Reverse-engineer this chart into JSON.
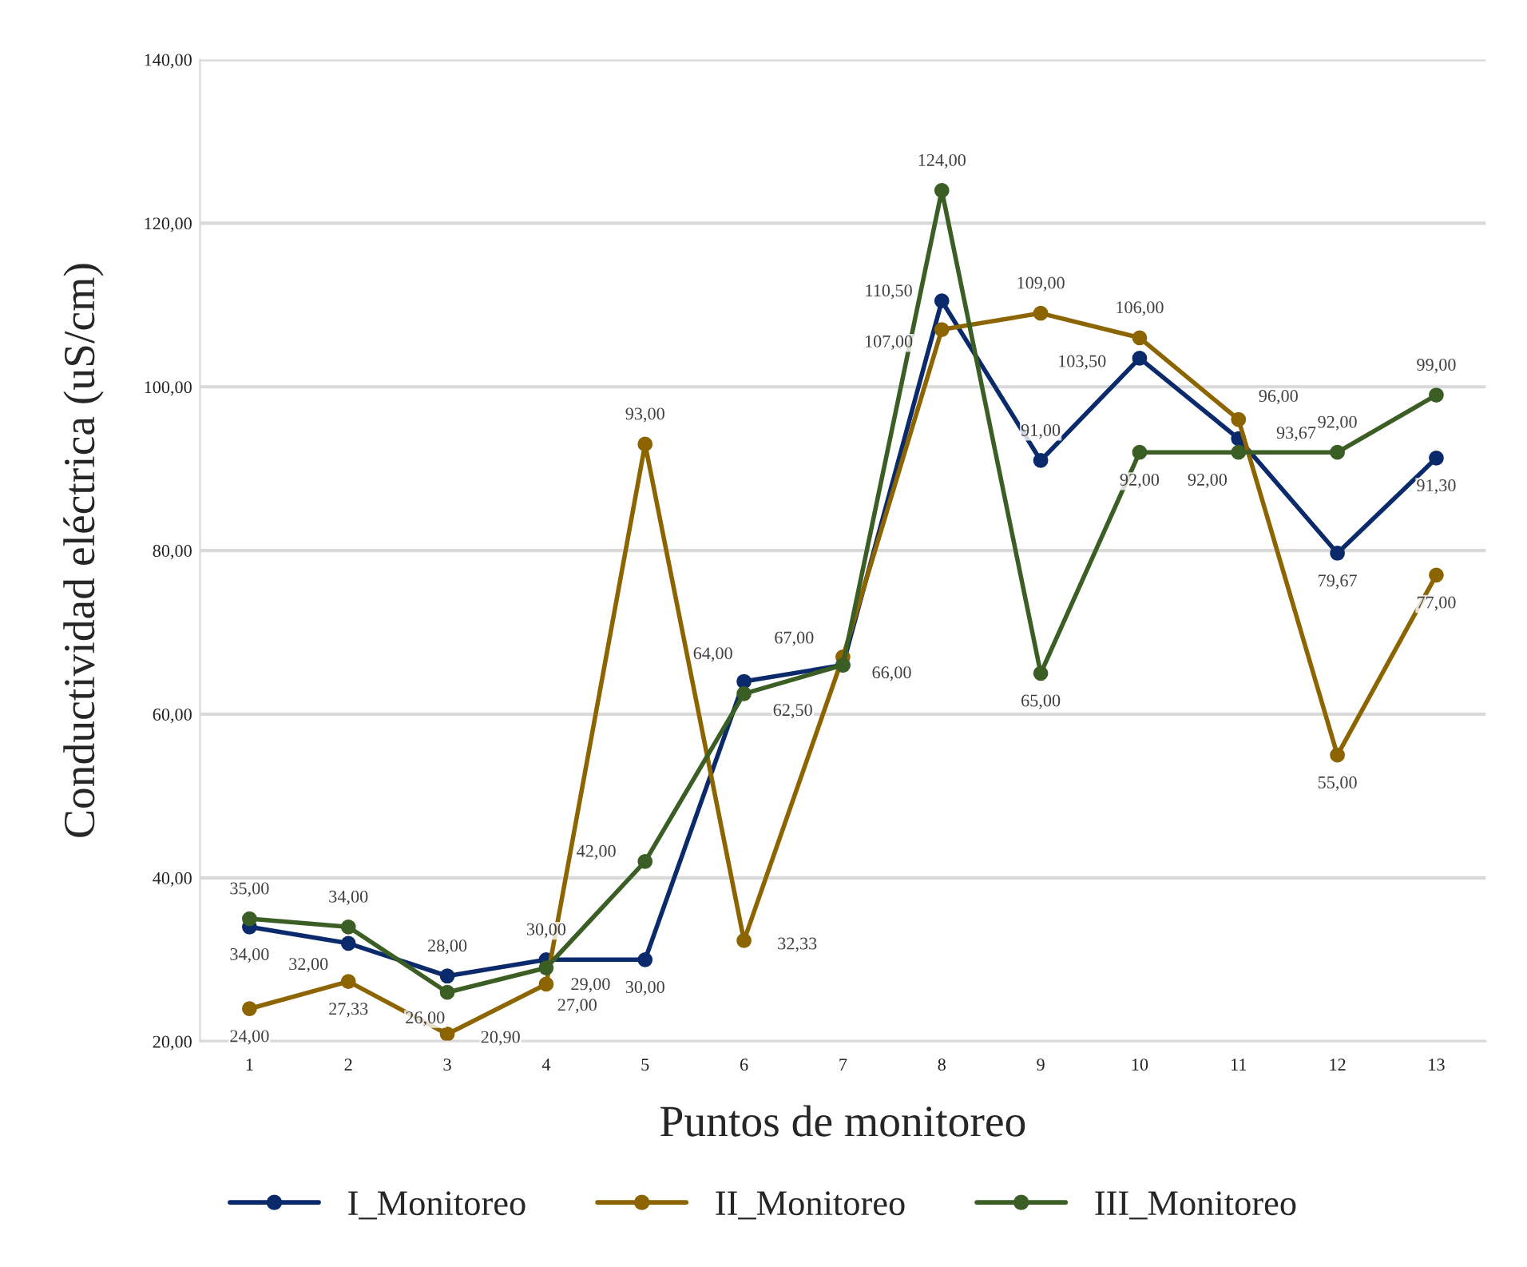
{
  "chart_data": {
    "type": "line",
    "xlabel": "Puntos de monitoreo",
    "ylabel": "Conductividad eléctrica (uS/cm)",
    "categories": [
      "1",
      "2",
      "3",
      "4",
      "5",
      "6",
      "7",
      "8",
      "9",
      "10",
      "11",
      "12",
      "13"
    ],
    "series": [
      {
        "name": "I_Monitoreo",
        "color": "#0b2a6b",
        "values": [
          34,
          32,
          28,
          30,
          30,
          64,
          66,
          110.5,
          91,
          103.5,
          93.67,
          79.67,
          91.3
        ],
        "value_labels": [
          "34,00",
          "32,00",
          "28,00",
          "30,00",
          "30,00",
          "64,00",
          "66,00",
          "110,50",
          "91,00",
          "103,50",
          "93,67",
          "79,67",
          "91,30"
        ]
      },
      {
        "name": "II_Monitoreo",
        "color": "#8c6400",
        "values": [
          24,
          27.33,
          20.9,
          27,
          93,
          32.33,
          67,
          107,
          109,
          106,
          96,
          55,
          77
        ],
        "value_labels": [
          "24,00",
          "27,33",
          "20,90",
          "27,00",
          "93,00",
          "32,33",
          "67,00",
          "107,00",
          "109,00",
          "106,00",
          "96,00",
          "55,00",
          "77,00"
        ]
      },
      {
        "name": "III_Monitoreo",
        "color": "#3b5e24",
        "values": [
          35,
          34,
          26,
          29,
          42,
          62.5,
          66,
          124,
          65,
          92,
          92,
          92,
          99
        ],
        "value_labels": [
          "35,00",
          "34,00",
          "26,00",
          "29,00",
          "42,00",
          "62,50",
          null,
          "124,00",
          "65,00",
          "92,00",
          "92,00",
          "92,00",
          "99,00"
        ]
      }
    ],
    "ylim": [
      20,
      140
    ],
    "yticks": [
      {
        "value": 20,
        "label": "20,00"
      },
      {
        "value": 40,
        "label": "40,00"
      },
      {
        "value": 60,
        "label": "60,00"
      },
      {
        "value": 80,
        "label": "80,00"
      },
      {
        "value": 100,
        "label": "100,00"
      },
      {
        "value": 120,
        "label": "120,00"
      },
      {
        "value": 140,
        "label": "140,00"
      }
    ],
    "grid": "y",
    "legend": "bottom",
    "marker": "circle",
    "line_style": "solid"
  }
}
